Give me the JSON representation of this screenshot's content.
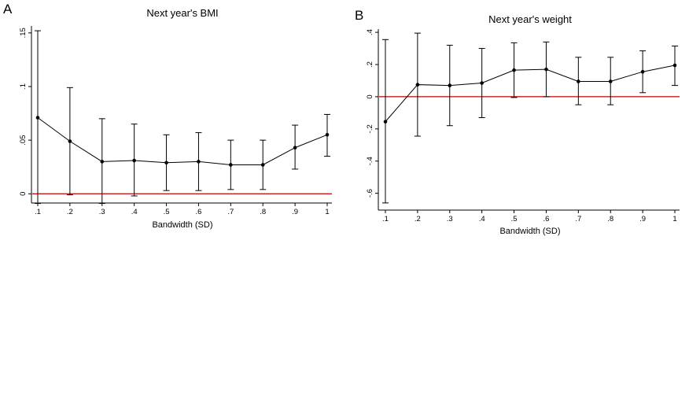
{
  "chart_data": [
    {
      "panel_label": "A",
      "type": "line",
      "title": "Next year's BMI",
      "xlabel": "Bandwidth (SD)",
      "ylabel": "",
      "x": [
        0.1,
        0.2,
        0.3,
        0.4,
        0.5,
        0.6,
        0.7,
        0.8,
        0.9,
        1.0
      ],
      "x_tick_labels": [
        ".1",
        ".2",
        ".3",
        ".4",
        ".5",
        ".6",
        ".7",
        ".8",
        ".9",
        "1"
      ],
      "y_ticks": [
        0,
        0.05,
        0.1,
        0.15
      ],
      "y_tick_labels": [
        "0",
        ".05",
        ".1",
        ".15"
      ],
      "ylim": [
        -0.013,
        0.155
      ],
      "xlim": [
        0.1,
        1.0
      ],
      "reference_line": 0,
      "reference_color": "#c00000",
      "series": [
        {
          "estimate": [
            0.071,
            0.049,
            0.03,
            0.031,
            0.029,
            0.03,
            0.027,
            0.027,
            0.043,
            0.055
          ],
          "ci_low": [
            -0.009,
            -0.001,
            -0.009,
            -0.002,
            0.003,
            0.003,
            0.004,
            0.004,
            0.023,
            0.035
          ],
          "ci_high": [
            0.152,
            0.099,
            0.07,
            0.065,
            0.055,
            0.057,
            0.05,
            0.05,
            0.064,
            0.074
          ]
        }
      ],
      "grid": false
    },
    {
      "panel_label": "B",
      "type": "line",
      "title": "Next year's weight",
      "xlabel": "Bandwidth (SD)",
      "ylabel": "",
      "x": [
        0.1,
        0.2,
        0.3,
        0.4,
        0.5,
        0.6,
        0.7,
        0.8,
        0.9,
        1.0
      ],
      "x_tick_labels": [
        ".1",
        ".2",
        ".3",
        ".4",
        ".5",
        ".6",
        ".7",
        ".8",
        ".9",
        "1"
      ],
      "y_ticks": [
        -0.6,
        -0.4,
        -0.2,
        0,
        0.2,
        0.4
      ],
      "y_tick_labels": [
        "-.6",
        "-.4",
        "-.2",
        "0",
        ".2",
        ".4"
      ],
      "ylim": [
        -0.68,
        0.42
      ],
      "xlim": [
        0.1,
        1.0
      ],
      "reference_line": 0,
      "reference_color": "#c00000",
      "series": [
        {
          "estimate": [
            -0.155,
            0.075,
            0.07,
            0.085,
            0.165,
            0.17,
            0.095,
            0.095,
            0.155,
            0.195
          ],
          "ci_low": [
            -0.66,
            -0.245,
            -0.18,
            -0.13,
            -0.005,
            0.0,
            -0.05,
            -0.05,
            0.025,
            0.07
          ],
          "ci_high": [
            0.355,
            0.395,
            0.32,
            0.3,
            0.335,
            0.34,
            0.245,
            0.245,
            0.285,
            0.315
          ]
        }
      ],
      "grid": false
    }
  ]
}
